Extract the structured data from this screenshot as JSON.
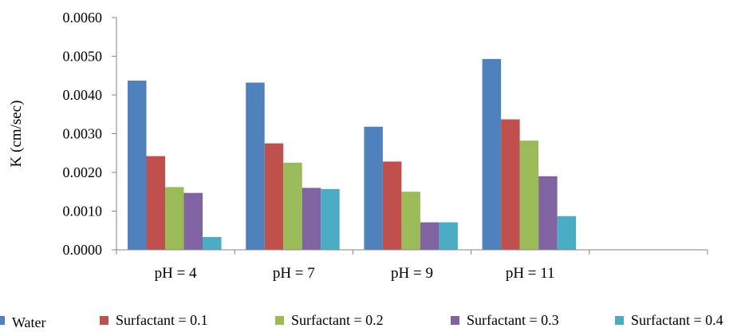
{
  "chart_data": {
    "type": "bar",
    "title": "",
    "xlabel": "",
    "ylabel": "K (cm/sec)",
    "categories": [
      "pH = 4",
      "pH = 7",
      "pH = 9",
      "pH = 11",
      ""
    ],
    "ylim": [
      0,
      0.006
    ],
    "yticks": [
      "0.0000",
      "0.0010",
      "0.0020",
      "0.0030",
      "0.0040",
      "0.0050",
      "0.0060"
    ],
    "grid": false,
    "legend_position": "bottom",
    "series": [
      {
        "name": "Water",
        "color": "#4f81bd",
        "values": [
          0.00437,
          0.00432,
          0.00318,
          0.00493,
          null
        ]
      },
      {
        "name": "Surfactant = 0.1",
        "color": "#c0504d",
        "values": [
          0.00242,
          0.00275,
          0.00228,
          0.00337,
          null
        ]
      },
      {
        "name": "Surfactant = 0.2",
        "color": "#9bbb59",
        "values": [
          0.00162,
          0.00225,
          0.0015,
          0.00282,
          null
        ]
      },
      {
        "name": "Surfactant = 0.3",
        "color": "#8064a2",
        "values": [
          0.00147,
          0.0016,
          0.00071,
          0.0019,
          null
        ]
      },
      {
        "name": "Surfactant = 0.4",
        "color": "#4bacc6",
        "values": [
          0.00033,
          0.00157,
          0.00071,
          0.00087,
          null
        ]
      }
    ]
  }
}
